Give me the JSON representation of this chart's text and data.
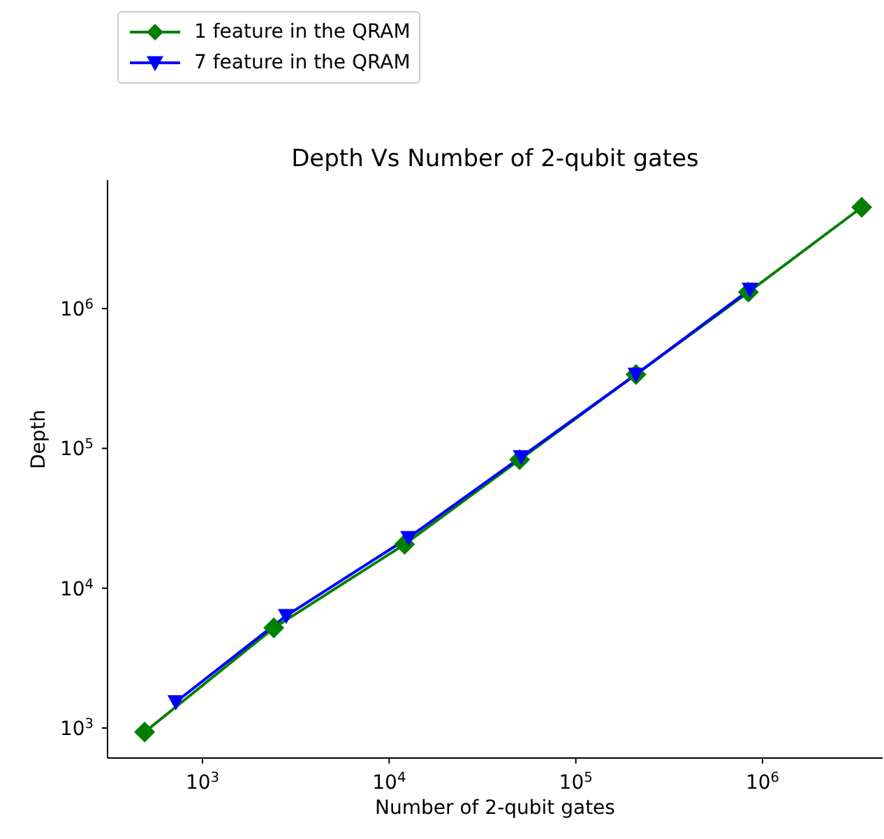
{
  "chart_data": {
    "type": "line",
    "title": "Depth Vs Number of 2-qubit gates",
    "xlabel": "Number of 2-qubit gates",
    "ylabel": "Depth",
    "log": "xy",
    "legend": "top left",
    "line_style": "solid",
    "xlim": [
      310,
      4400000
    ],
    "ylim": [
      610,
      8300000
    ],
    "xticks": [
      {
        "value": 1000,
        "label": "10$^{3}$"
      },
      {
        "value": 10000,
        "label": "10$^{4}$"
      },
      {
        "value": 100000,
        "label": "10$^{5}$"
      },
      {
        "value": 1000000,
        "label": "10$^{6}$"
      }
    ],
    "yticks": [
      {
        "value": 1000,
        "label": "10$^{3}$"
      },
      {
        "value": 10000,
        "label": "10$^{4}$"
      },
      {
        "value": 100000,
        "label": "10$^{5}$"
      },
      {
        "value": 1000000,
        "label": "10$^{6}$"
      }
    ],
    "series": [
      {
        "name": "1 feature in the QRAM",
        "color": "#008000",
        "marker": "diamond",
        "x": [
          490,
          2410,
          12100,
          50000,
          210000,
          840000,
          3400000
        ],
        "values": [
          935,
          5200,
          20600,
          83000,
          338000,
          1310000,
          5300000
        ]
      },
      {
        "name": "7 feature in the QRAM",
        "color": "#0000ff",
        "marker": "triangle",
        "x": [
          720,
          2810,
          12700,
          51000,
          210000,
          857000
        ],
        "values": [
          1535,
          6360,
          23000,
          87000,
          338000,
          1370000
        ]
      }
    ]
  }
}
